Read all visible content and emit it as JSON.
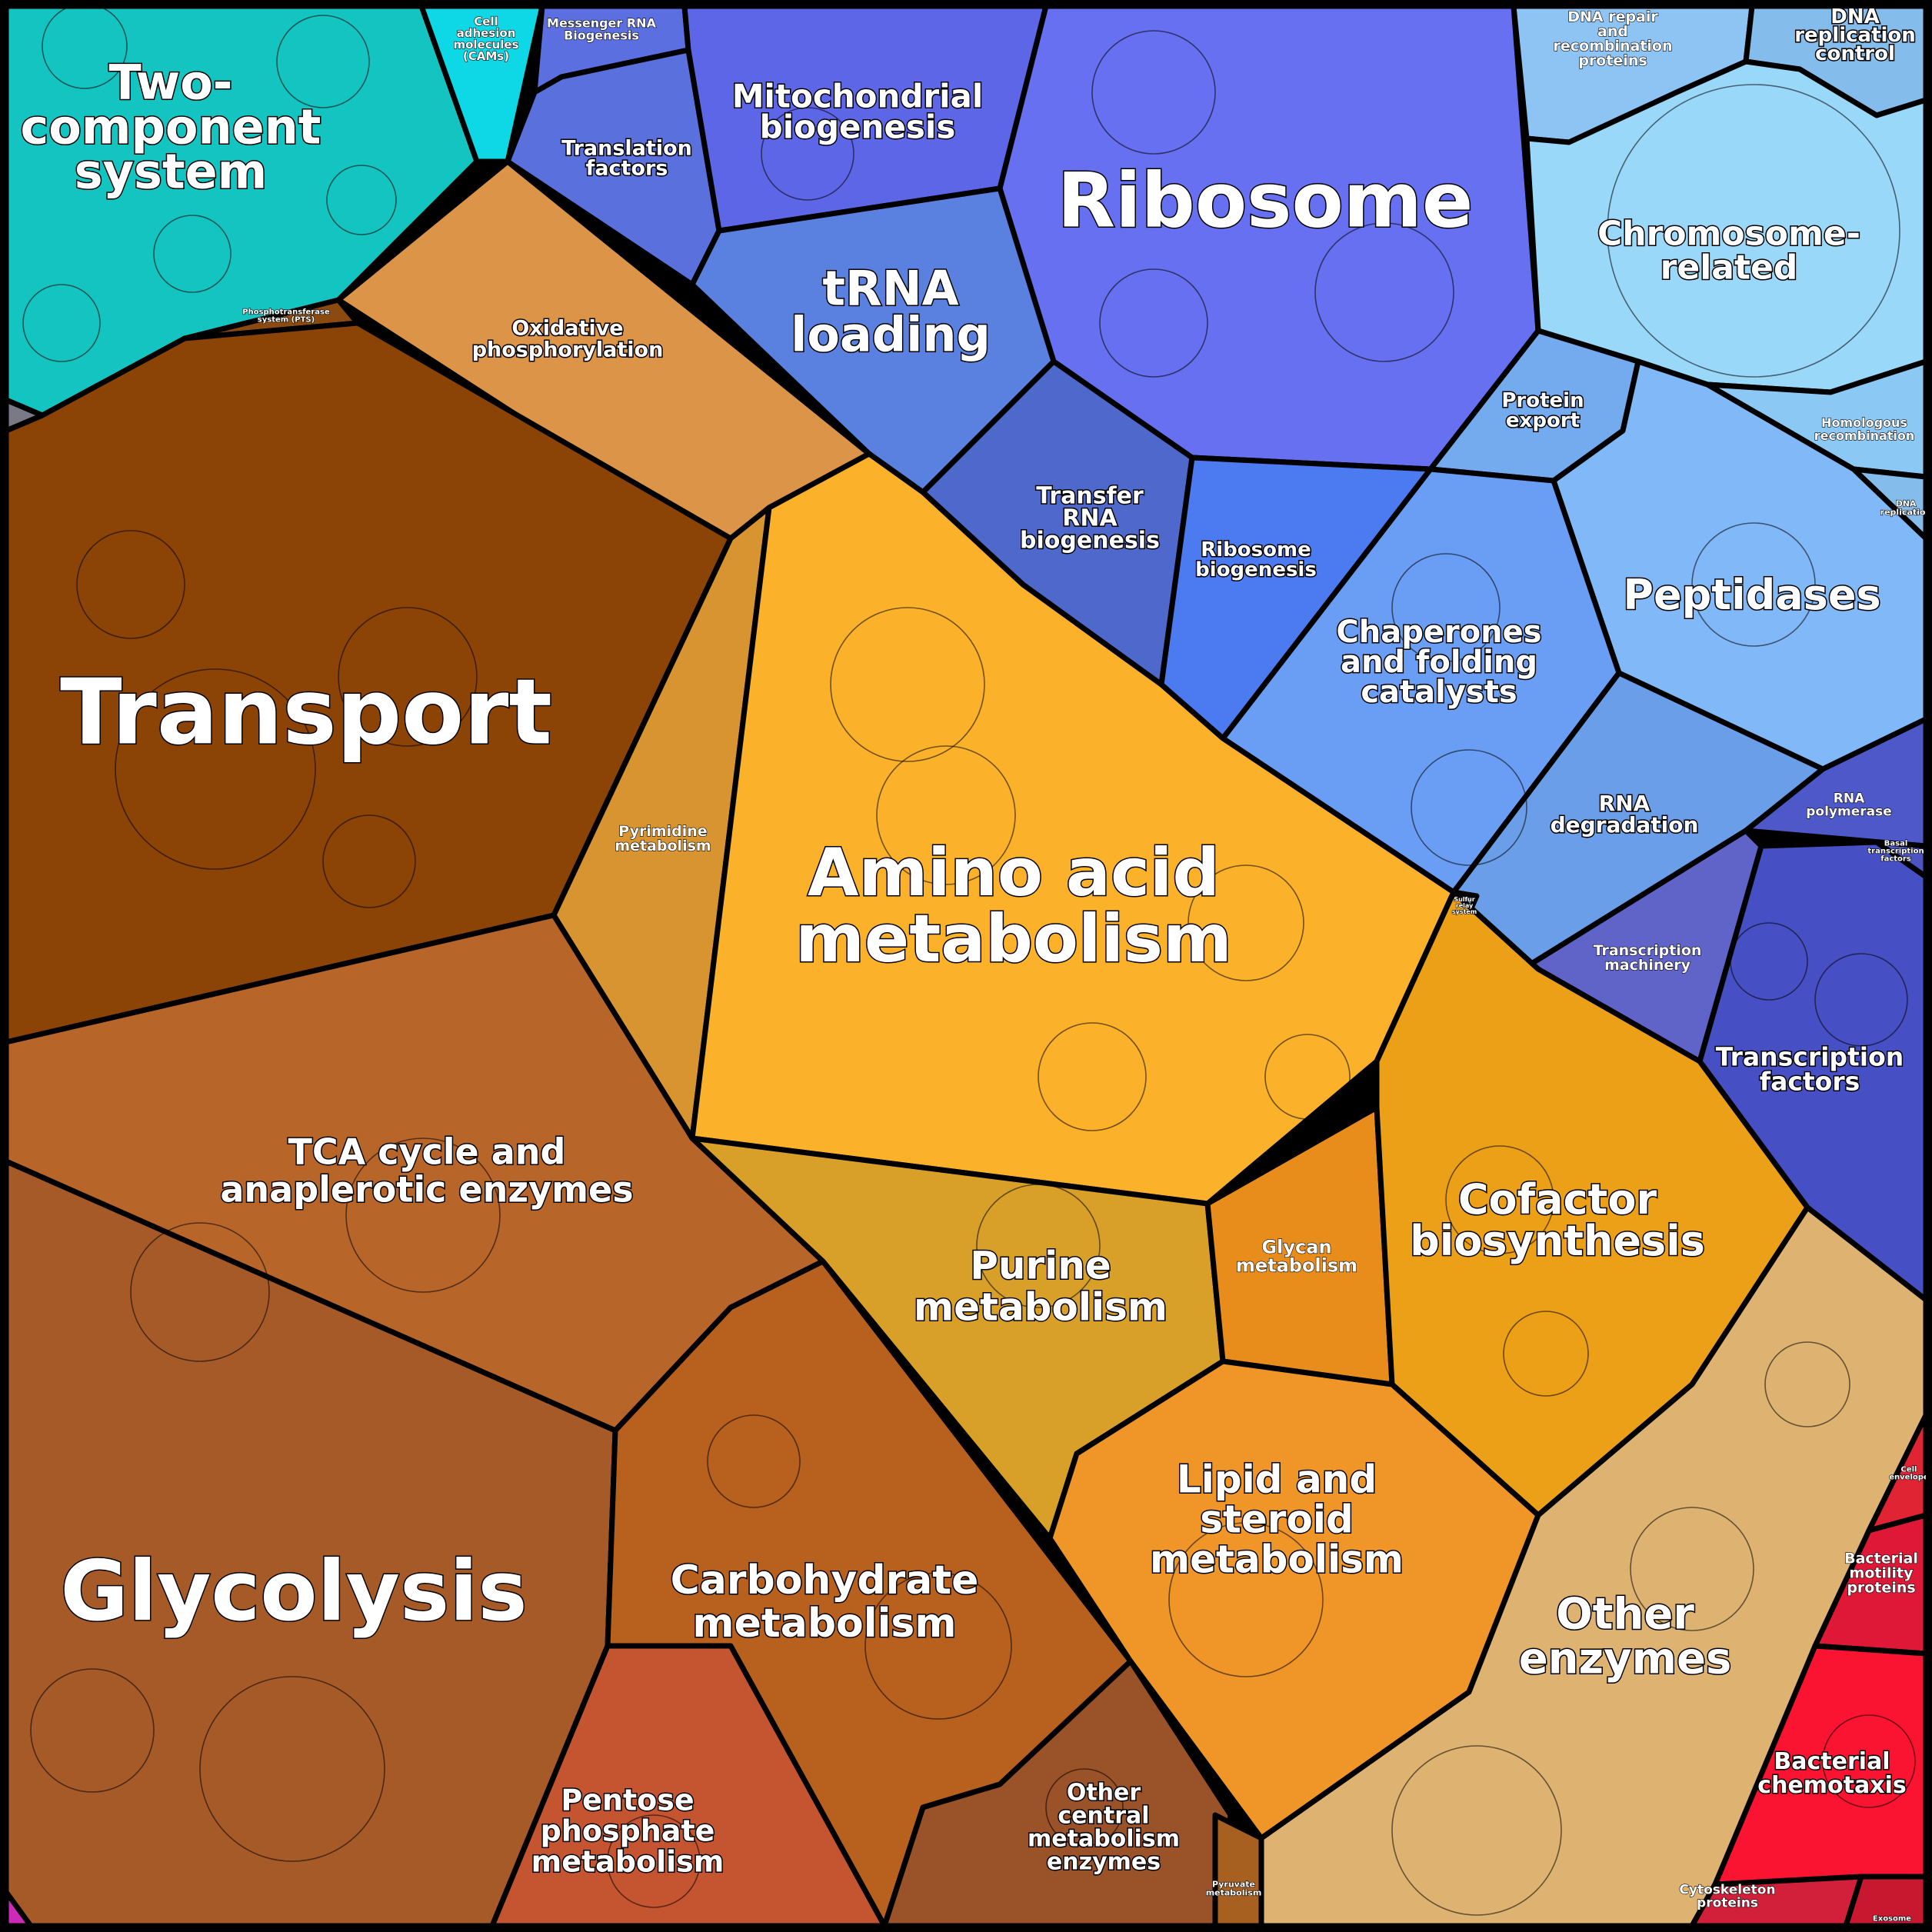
{
  "regions": [
    {
      "id": "two-component-system",
      "label": [
        "Two-",
        "component",
        "system"
      ],
      "color": "#14c4c1"
    },
    {
      "id": "cell-adhesion-molecules",
      "label": [
        "Cell",
        "adhesion",
        "molecules",
        "(CAMs)"
      ],
      "color": "#0fd8e6"
    },
    {
      "id": "messenger-rna-biogenesis",
      "label": [
        "Messenger RNA",
        "Biogenesis"
      ],
      "color": "#5b6fe0"
    },
    {
      "id": "translation-factors",
      "label": [
        "Translation",
        "factors"
      ],
      "color": "#5a70dc"
    },
    {
      "id": "mitochondrial-biogenesis",
      "label": [
        "Mitochondrial",
        "biogenesis"
      ],
      "color": "#5e66e8"
    },
    {
      "id": "ribosome",
      "label": [
        "Ribosome"
      ],
      "color": "#6670f0"
    },
    {
      "id": "trna-loading",
      "label": [
        "tRNA",
        "loading"
      ],
      "color": "#5a80e0"
    },
    {
      "id": "transfer-rna-biogenesis",
      "label": [
        "Transfer",
        "RNA",
        "biogenesis"
      ],
      "color": "#4f68cc"
    },
    {
      "id": "ribosome-biogenesis",
      "label": [
        "Ribosome",
        "biogenesis"
      ],
      "color": "#4c7af0"
    },
    {
      "id": "dna-repair",
      "label": [
        "DNA repair",
        "and",
        "recombination",
        "proteins"
      ],
      "color": "#8ec4f4"
    },
    {
      "id": "dna-replication-control",
      "label": [
        "DNA",
        "replication",
        "control"
      ],
      "color": "#84bcec"
    },
    {
      "id": "chromosome-related",
      "label": [
        "Chromosome-",
        "related"
      ],
      "color": "#9ad8fa"
    },
    {
      "id": "homologous-recombination",
      "label": [
        "Homologous",
        "recombination"
      ],
      "color": "#8cc8f4"
    },
    {
      "id": "dna-replication",
      "label": [
        "DNA",
        "replication"
      ],
      "color": "#84bcec"
    },
    {
      "id": "protein-export",
      "label": [
        "Protein",
        "export"
      ],
      "color": "#74aaee"
    },
    {
      "id": "peptidases",
      "label": [
        "Peptidases"
      ],
      "color": "#80b8f8"
    },
    {
      "id": "chaperones",
      "label": [
        "Chaperones",
        "and folding",
        "catalysts"
      ],
      "color": "#6a9ef4"
    },
    {
      "id": "rna-degradation",
      "label": [
        "RNA",
        "degradation"
      ],
      "color": "#6a9ee8"
    },
    {
      "id": "rna-polymerase",
      "label": [
        "RNA",
        "polymerase"
      ],
      "color": "#4e58c8"
    },
    {
      "id": "basal-transcription-factors",
      "label": [
        "Basal",
        "transcription",
        "factors"
      ],
      "color": "#4a54c2"
    },
    {
      "id": "transcription-machinery",
      "label": [
        "Transcription",
        "machinery"
      ],
      "color": "#6064c8"
    },
    {
      "id": "transcription-factors",
      "label": [
        "Transcription",
        "factors"
      ],
      "color": "#4650c4"
    },
    {
      "id": "sulfur-relay-system",
      "label": [
        "Sulfur",
        "relay",
        "system"
      ],
      "color": "#6a9ef4"
    },
    {
      "id": "phosphotransferase-system",
      "label": [
        "Phosphotransferase",
        "system (PTS)"
      ],
      "color": "#8a4a10"
    },
    {
      "id": "oxidative-phosphorylation",
      "label": [
        "Oxidative",
        "phosphorylation"
      ],
      "color": "#dc9448"
    },
    {
      "id": "transport",
      "label": [
        "Transport"
      ],
      "color": "#8b4306"
    },
    {
      "id": "pyrimidine-metabolism",
      "label": [
        "Pyrimidine",
        "metabolism"
      ],
      "color": "#d89430"
    },
    {
      "id": "amino-acid-metabolism",
      "label": [
        "Amino acid",
        "metabolism"
      ],
      "color": "#fbb12a"
    },
    {
      "id": "tca-cycle",
      "label": [
        "TCA cycle and",
        "anaplerotic enzymes"
      ],
      "color": "#b8652a"
    },
    {
      "id": "glycolysis",
      "label": [
        "Glycolysis"
      ],
      "color": "#a65a28"
    },
    {
      "id": "carbohydrate-metabolism",
      "label": [
        "Carbohydrate",
        "metabolism"
      ],
      "color": "#b8601e"
    },
    {
      "id": "pentose-phosphate",
      "label": [
        "Pentose",
        "phosphate",
        "metabolism"
      ],
      "color": "#c45530"
    },
    {
      "id": "other-central-metabolism",
      "label": [
        "Other",
        "central",
        "metabolism",
        "enzymes"
      ],
      "color": "#9a5228"
    },
    {
      "id": "pyruvate-metabolism",
      "label": [
        "Pyruvate",
        "metabolism"
      ],
      "color": "#a86020"
    },
    {
      "id": "purine-metabolism",
      "label": [
        "Purine",
        "metabolism"
      ],
      "color": "#d8a028"
    },
    {
      "id": "glycan-metabolism",
      "label": [
        "Glycan",
        "metabolism"
      ],
      "color": "#e88c1c"
    },
    {
      "id": "cofactor-biosynthesis",
      "label": [
        "Cofactor",
        "biosynthesis"
      ],
      "color": "#eca018"
    },
    {
      "id": "lipid-steroid-metabolism",
      "label": [
        "Lipid and",
        "steroid",
        "metabolism"
      ],
      "color": "#f09628"
    },
    {
      "id": "other-enzymes",
      "label": [
        "Other",
        "enzymes"
      ],
      "color": "#deb270"
    },
    {
      "id": "cell-envelope",
      "label": [
        "Cell",
        "envelope"
      ],
      "color": "#e02434"
    },
    {
      "id": "bacterial-motility-proteins",
      "label": [
        "Bacterial",
        "motility",
        "proteins"
      ],
      "color": "#e01838"
    },
    {
      "id": "bacterial-chemotaxis",
      "label": [
        "Bacterial",
        "chemotaxis"
      ],
      "color": "#fa1432"
    },
    {
      "id": "cytoskeleton-proteins",
      "label": [
        "Cytoskeleton",
        "proteins"
      ],
      "color": "#d2203a"
    },
    {
      "id": "exosome",
      "label": [
        "Exosome"
      ],
      "color": "#c81830"
    },
    {
      "id": "misc-magenta",
      "label": [],
      "color": "#cc2ab8"
    },
    {
      "id": "misc-grey",
      "label": [],
      "color": "#7a7a86"
    }
  ]
}
